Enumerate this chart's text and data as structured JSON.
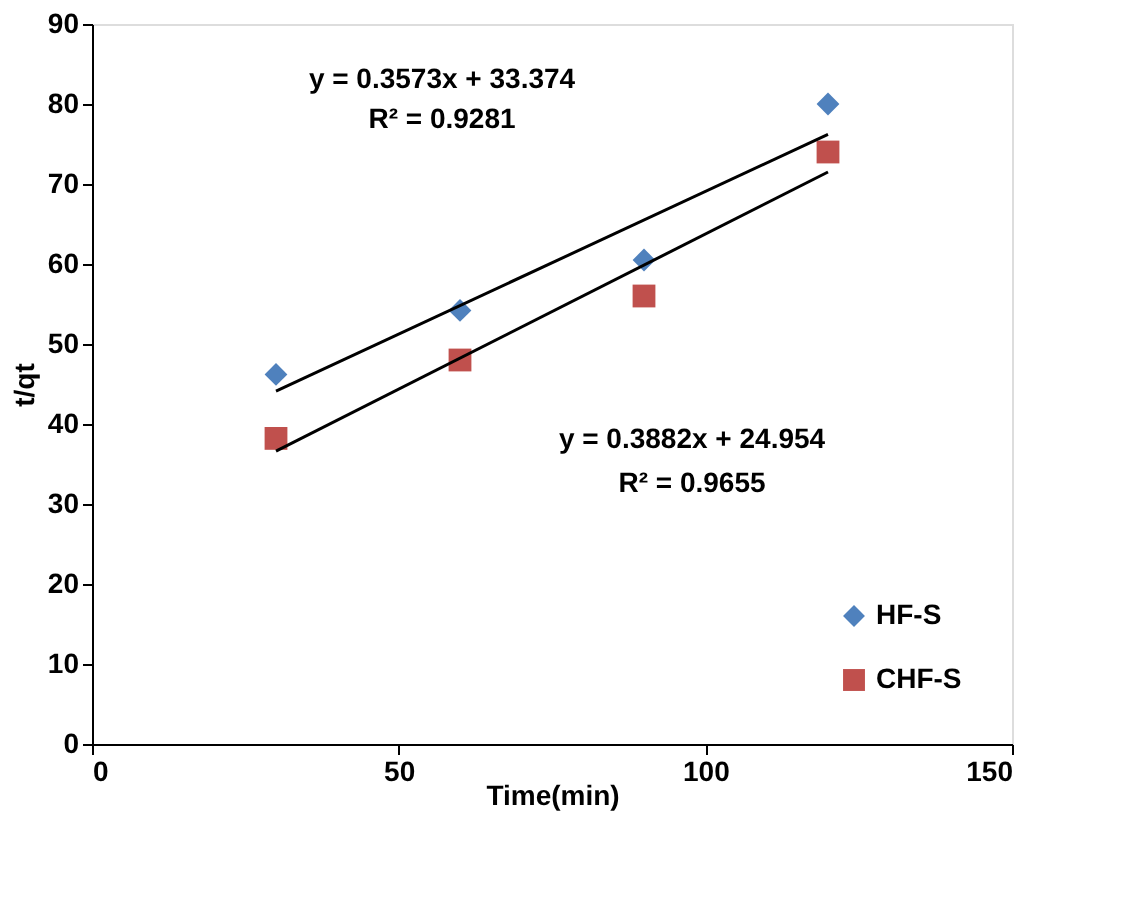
{
  "chart_data": {
    "type": "scatter",
    "xlabel": "Time(min)",
    "ylabel": "t/qt",
    "xlim": [
      0,
      150
    ],
    "xticks": [
      0,
      50,
      100,
      150
    ],
    "ylim": [
      0,
      90
    ],
    "yticks": [
      0,
      10,
      20,
      30,
      40,
      50,
      60,
      70,
      80,
      90
    ],
    "grid": false,
    "legend": "bottom right",
    "series": [
      {
        "name": "HF-S",
        "color": "#4f81bd",
        "marker": "diamond",
        "x": [
          30,
          60,
          90,
          120
        ],
        "values": [
          46.2,
          54.2,
          60.5,
          80
        ]
      },
      {
        "name": "CHF-S",
        "color": "#c0504d",
        "marker": "square",
        "x": [
          30,
          60,
          90,
          120
        ],
        "values": [
          38.2,
          48,
          56,
          74
        ]
      },
      {
        "type": "line",
        "color": "#000000",
        "x": [
          30,
          120
        ],
        "values": [
          44.1,
          76.2
        ]
      },
      {
        "type": "line",
        "color": "#000000",
        "x": [
          30,
          120
        ],
        "values": [
          36.6,
          71.5
        ]
      }
    ],
    "annotations": [
      "y = 0.3573x + 33.374",
      "R² = 0.9281",
      "y = 0.3882x + 24.954",
      "R² = 0.9655"
    ]
  }
}
